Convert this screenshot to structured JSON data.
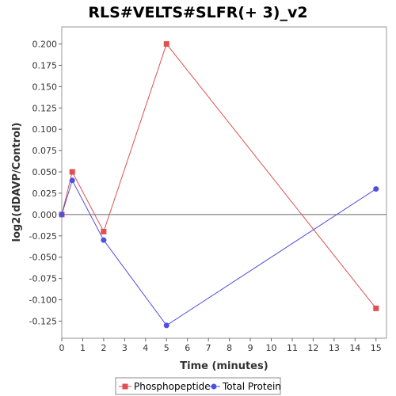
{
  "chart_data": {
    "type": "line",
    "title": "RLS#VELTS#SLFR(+ 3)_v2",
    "xlabel": "Time (minutes)",
    "ylabel": "log2(dDAVP/Control)",
    "xlim": [
      0,
      15.5
    ],
    "ylim": [
      -0.145,
      0.22
    ],
    "xticks": [
      0,
      1,
      2,
      3,
      4,
      5,
      6,
      7,
      8,
      9,
      10,
      11,
      12,
      13,
      14,
      15
    ],
    "yticks": [
      -0.125,
      -0.1,
      -0.075,
      -0.05,
      -0.025,
      0.0,
      0.025,
      0.05,
      0.075,
      0.1,
      0.125,
      0.15,
      0.175,
      0.2
    ],
    "ytick_labels": [
      "-0.125",
      "-0.100",
      "-0.075",
      "-0.050",
      "-0.025",
      "0.000",
      "0.025",
      "0.050",
      "0.075",
      "0.100",
      "0.125",
      "0.150",
      "0.175",
      "0.200"
    ],
    "zero_line": true,
    "grid": false,
    "legend_position": "bottom",
    "series": [
      {
        "name": "Phosphopeptide",
        "color": "#e05050",
        "marker": "square",
        "x": [
          0,
          0.5,
          2,
          5,
          15
        ],
        "y": [
          0.0,
          0.05,
          -0.02,
          0.2,
          -0.11
        ]
      },
      {
        "name": "Total Protein",
        "color": "#5050e0",
        "marker": "circle",
        "x": [
          0,
          0.5,
          2,
          5,
          15
        ],
        "y": [
          0.0,
          0.04,
          -0.03,
          -0.13,
          0.03
        ]
      }
    ]
  }
}
